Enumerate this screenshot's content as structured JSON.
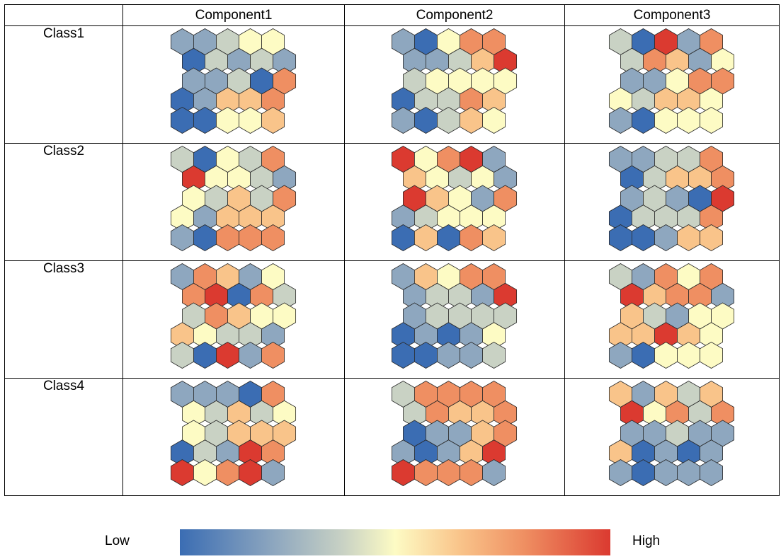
{
  "chart_data": {
    "type": "heatmap",
    "title": "",
    "columns": [
      "Component1",
      "Component2",
      "Component3"
    ],
    "rows": [
      "Class1",
      "Class2",
      "Class3",
      "Class4"
    ],
    "color_scale": {
      "low_label": "Low",
      "high_label": "High",
      "stops": [
        "#3b6db3",
        "#8ea7bf",
        "#c9d2c4",
        "#fdfbc4",
        "#f9c48a",
        "#ef8f62",
        "#db3a30"
      ]
    },
    "hex_grid": {
      "rows": 5,
      "cols": 5
    },
    "maps": [
      [
        [
          [
            1,
            1,
            2,
            3,
            3
          ],
          [
            0,
            2,
            1,
            2,
            1
          ],
          [
            1,
            1,
            2,
            0,
            5
          ],
          [
            0,
            1,
            4,
            4,
            5
          ],
          [
            0,
            0,
            3,
            3,
            4
          ]
        ],
        [
          [
            1,
            0,
            3,
            5,
            5
          ],
          [
            1,
            1,
            2,
            4,
            6
          ],
          [
            2,
            3,
            3,
            3,
            3
          ],
          [
            0,
            2,
            2,
            5,
            4
          ],
          [
            1,
            0,
            2,
            4,
            3
          ]
        ],
        [
          [
            2,
            0,
            6,
            1,
            5
          ],
          [
            2,
            5,
            4,
            1,
            3
          ],
          [
            1,
            1,
            3,
            5,
            5
          ],
          [
            3,
            2,
            4,
            4,
            3
          ],
          [
            1,
            0,
            3,
            3,
            3
          ]
        ]
      ],
      [
        [
          [
            2,
            0,
            3,
            2,
            5
          ],
          [
            6,
            3,
            3,
            2,
            1
          ],
          [
            3,
            2,
            4,
            2,
            5
          ],
          [
            3,
            1,
            4,
            4,
            4
          ],
          [
            1,
            0,
            5,
            5,
            5
          ]
        ],
        [
          [
            6,
            3,
            5,
            6,
            1
          ],
          [
            4,
            3,
            2,
            3,
            1
          ],
          [
            6,
            4,
            3,
            1,
            5
          ],
          [
            1,
            2,
            3,
            3,
            3
          ],
          [
            0,
            4,
            0,
            5,
            4
          ]
        ],
        [
          [
            1,
            1,
            2,
            2,
            5
          ],
          [
            0,
            2,
            4,
            4,
            5
          ],
          [
            1,
            2,
            1,
            0,
            6
          ],
          [
            0,
            2,
            2,
            2,
            5
          ],
          [
            0,
            0,
            1,
            4,
            4
          ]
        ]
      ],
      [
        [
          [
            1,
            5,
            4,
            1,
            3
          ],
          [
            5,
            6,
            0,
            5,
            2
          ],
          [
            2,
            5,
            4,
            3,
            3
          ],
          [
            4,
            3,
            2,
            2,
            1
          ],
          [
            2,
            0,
            6,
            1,
            5
          ]
        ],
        [
          [
            1,
            4,
            3,
            5,
            5
          ],
          [
            1,
            2,
            2,
            1,
            6
          ],
          [
            1,
            2,
            2,
            2,
            2
          ],
          [
            0,
            1,
            0,
            1,
            3
          ],
          [
            0,
            0,
            1,
            1,
            2
          ]
        ],
        [
          [
            2,
            1,
            5,
            3,
            5
          ],
          [
            6,
            4,
            5,
            5,
            1
          ],
          [
            4,
            2,
            1,
            3,
            3
          ],
          [
            4,
            4,
            6,
            4,
            3
          ],
          [
            1,
            0,
            3,
            3,
            3
          ]
        ]
      ],
      [
        [
          [
            1,
            1,
            1,
            0,
            5
          ],
          [
            3,
            2,
            4,
            2,
            3
          ],
          [
            3,
            2,
            4,
            4,
            4
          ],
          [
            0,
            2,
            1,
            6,
            5
          ],
          [
            6,
            3,
            5,
            6,
            1
          ]
        ],
        [
          [
            2,
            5,
            5,
            5,
            5
          ],
          [
            2,
            5,
            4,
            4,
            5
          ],
          [
            0,
            1,
            1,
            4,
            5
          ],
          [
            1,
            0,
            1,
            4,
            6
          ],
          [
            6,
            5,
            5,
            5,
            1
          ]
        ],
        [
          [
            4,
            1,
            4,
            2,
            4
          ],
          [
            6,
            3,
            5,
            2,
            5
          ],
          [
            1,
            1,
            2,
            1,
            1
          ],
          [
            4,
            0,
            1,
            0,
            1
          ],
          [
            1,
            0,
            1,
            1,
            1
          ]
        ]
      ]
    ]
  }
}
